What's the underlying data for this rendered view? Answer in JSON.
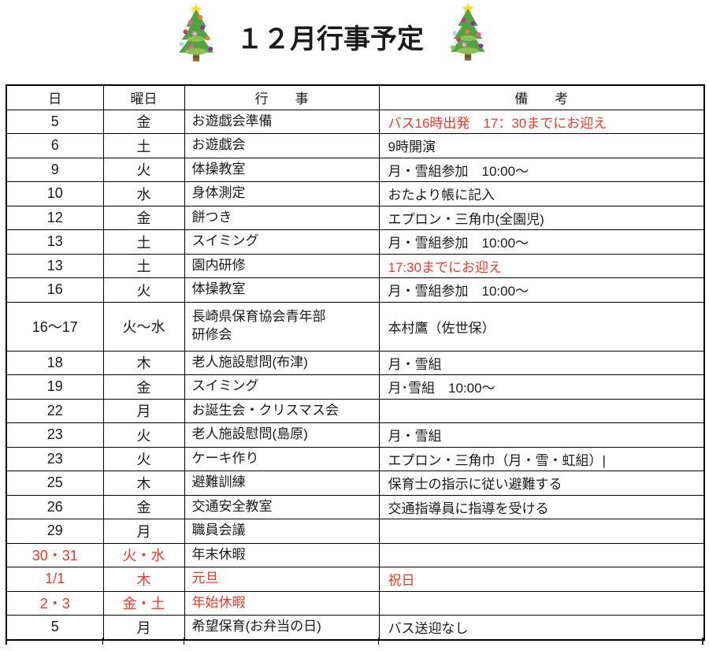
{
  "title": "１２月行事予定",
  "colors": {
    "red": "#e83a2b",
    "black": "#1b1b1b",
    "tree_green": "#55a245",
    "tree_green_light": "#8cc152",
    "trunk_brown": "#8a6239",
    "star_yellow": "#ffd93b"
  },
  "decorations": {
    "left_tree": "christmas-tree-icon",
    "right_tree": "christmas-tree-icon"
  },
  "table": {
    "header": {
      "day": "日",
      "weekday": "曜日",
      "event": "行　　事",
      "note": "備　　考"
    },
    "rows": [
      {
        "day": "5",
        "weekday": "金",
        "event": "お遊戯会準備",
        "note": "バス16時出発　17：30までにお迎え",
        "note_red": true
      },
      {
        "day": "6",
        "weekday": "土",
        "event": "お遊戯会",
        "note": "9時開演"
      },
      {
        "day": "9",
        "weekday": "火",
        "event": "体操教室",
        "note": "月・雪組参加　10:00～"
      },
      {
        "day": "10",
        "weekday": "水",
        "event": "身体測定",
        "note": "おたより帳に記入"
      },
      {
        "day": "12",
        "weekday": "金",
        "event": "餅つき",
        "note": "エプロン・三角巾(全園児)"
      },
      {
        "day": "13",
        "weekday": "土",
        "event": "スイミング",
        "note": "月・雪組参加　10:00～"
      },
      {
        "day": "13",
        "weekday": "土",
        "event": "園内研修",
        "note": "17:30までにお迎え",
        "note_red": true
      },
      {
        "day": "16",
        "weekday": "火",
        "event": "体操教室",
        "note": "月・雪組参加　10:00～"
      },
      {
        "day": "16～17",
        "weekday": "火～水",
        "event": "長崎県保育協会青年部\n研修会",
        "note": "本村鷹（佐世保）",
        "tall": true
      },
      {
        "day": "18",
        "weekday": "木",
        "event": "老人施設慰問(布津)",
        "note": "月・雪組"
      },
      {
        "day": "19",
        "weekday": "金",
        "event": "スイミング",
        "note": "月･雪組　10:00～"
      },
      {
        "day": "22",
        "weekday": "月",
        "event": "お誕生会・クリスマス会",
        "note": ""
      },
      {
        "day": "23",
        "weekday": "火",
        "event": "老人施設慰問(島原)",
        "note": "月・雪組"
      },
      {
        "day": "23",
        "weekday": "火",
        "event": "ケーキ作り",
        "note": "エプロン・三角巾（月・雪・虹組）|"
      },
      {
        "day": "25",
        "weekday": "木",
        "event": "避難訓練",
        "note": "保育士の指示に従い避難する"
      },
      {
        "day": "26",
        "weekday": "金",
        "event": "交通安全教室",
        "note": "交通指導員に指導を受ける"
      },
      {
        "day": "29",
        "weekday": "月",
        "event": "職員会議",
        "note": ""
      },
      {
        "day": "30・31",
        "weekday": "火・水",
        "event": "年末休暇",
        "note": "",
        "day_red": true
      },
      {
        "day": "1/1",
        "weekday": "木",
        "event": "元旦",
        "note": "祝日",
        "all_red": true
      },
      {
        "day": "2・3",
        "weekday": "金・土",
        "event": "年始休暇",
        "note": "",
        "all_red": true
      },
      {
        "day": "5",
        "weekday": "月",
        "event": "希望保育(お弁当の日)",
        "note": "バス送迎なし"
      }
    ]
  }
}
